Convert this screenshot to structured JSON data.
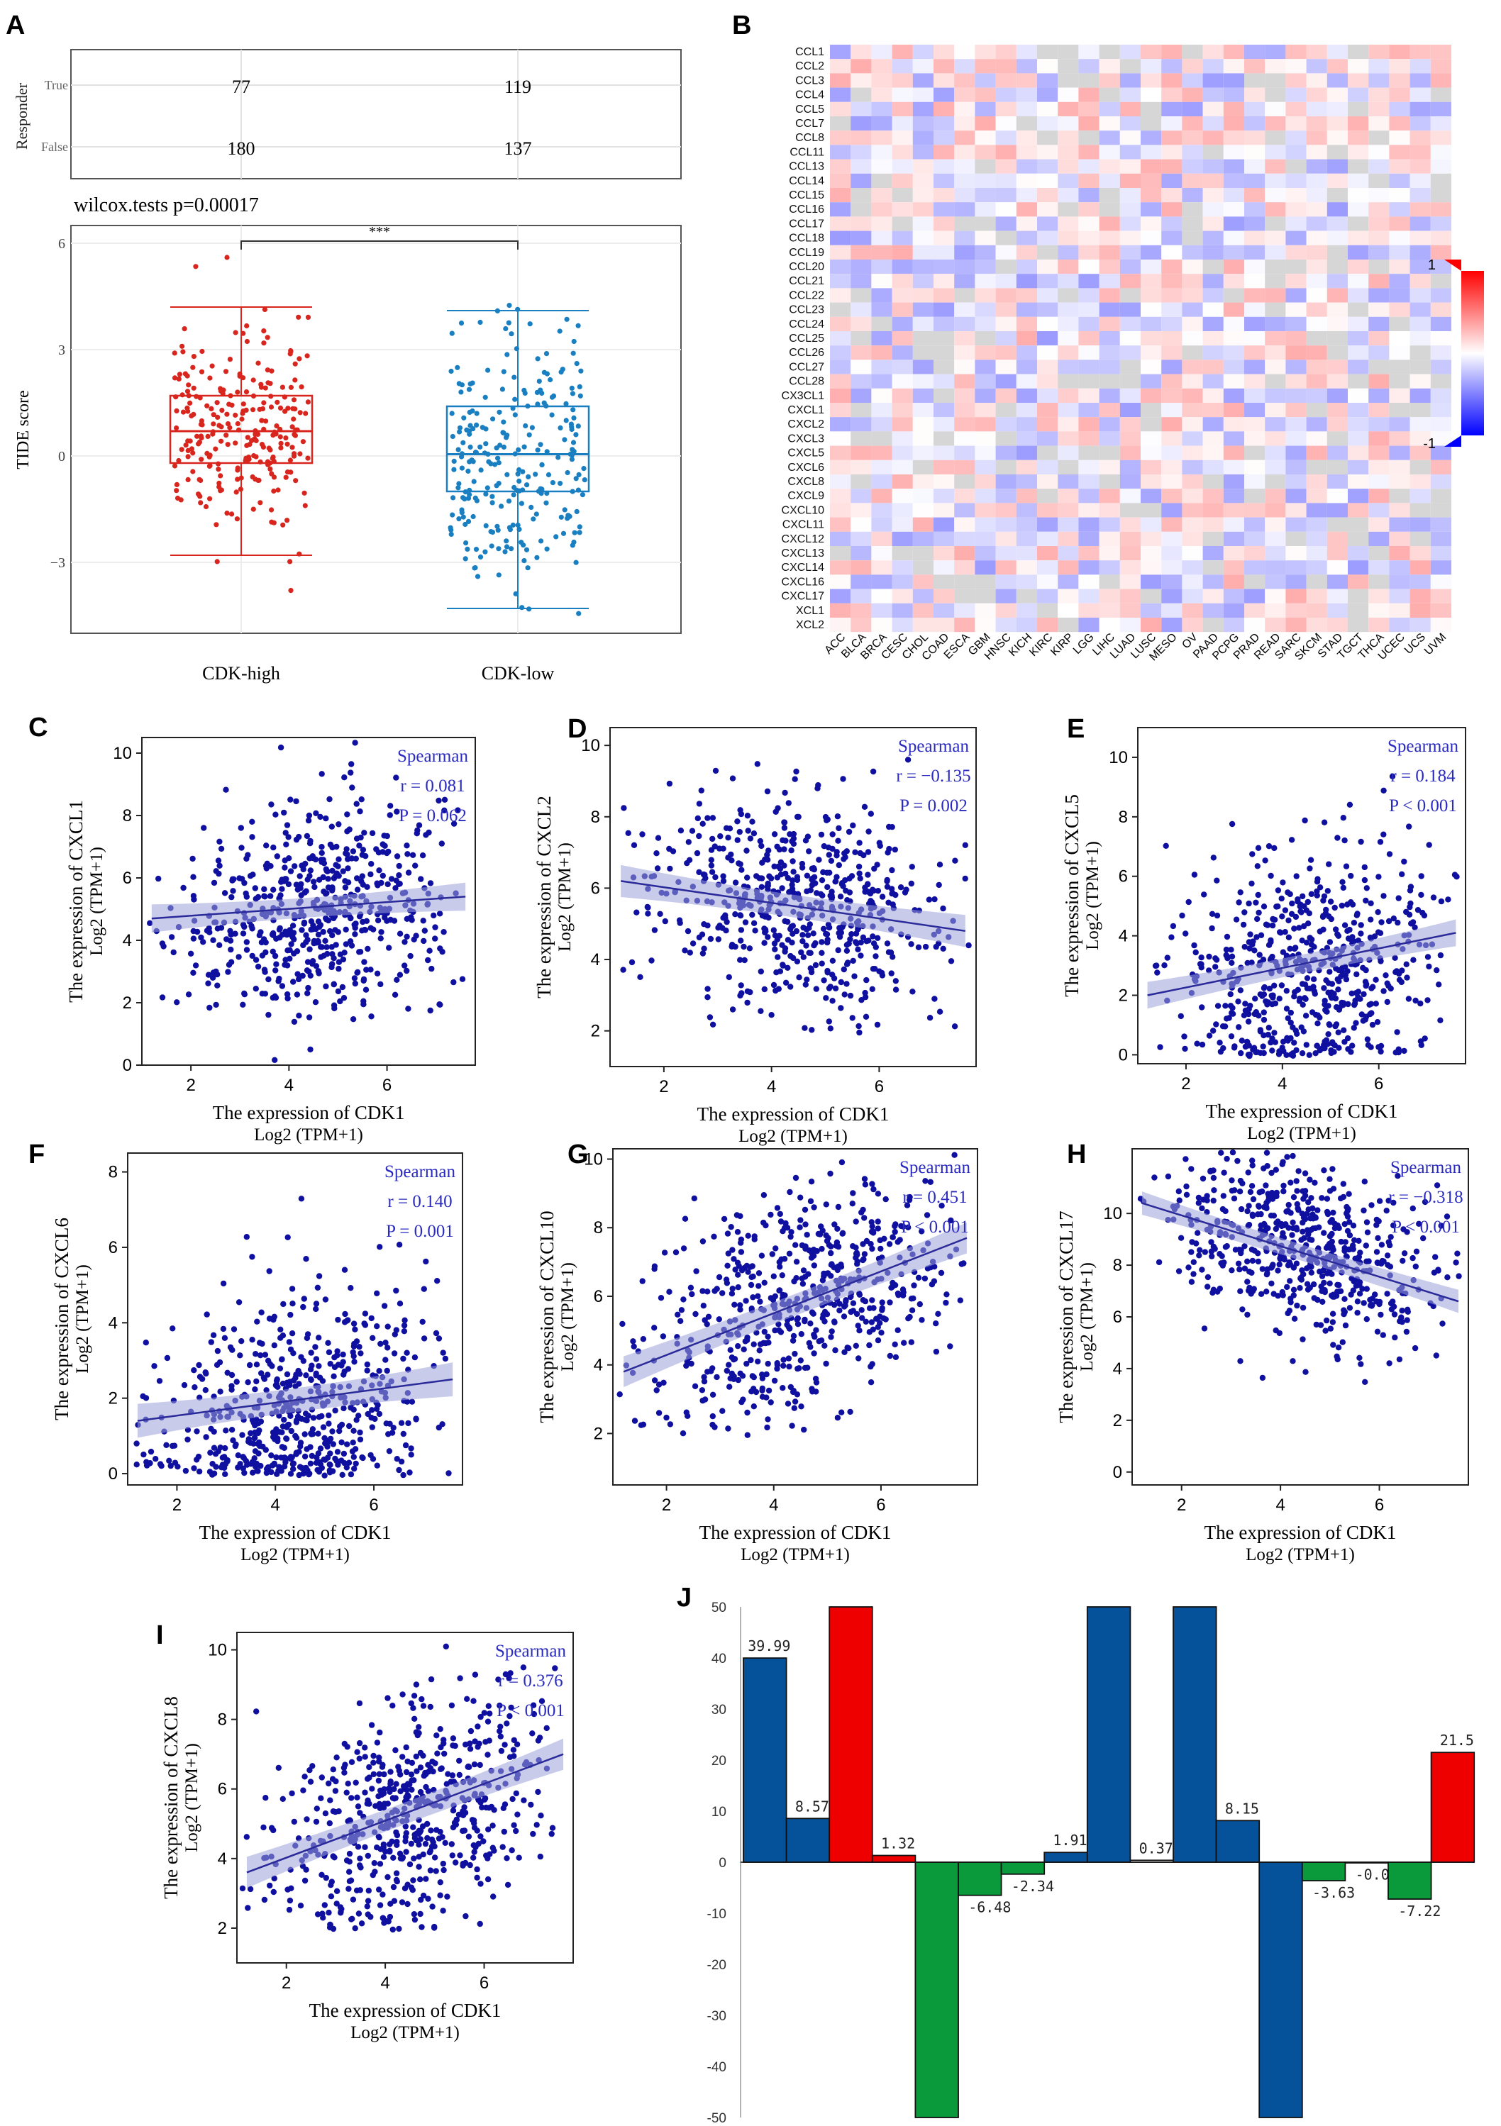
{
  "colors": {
    "high": "#d8261e",
    "low": "#1a7fc1",
    "point": "#1010a0",
    "fit": "#2a2a9a",
    "band": "#9da0d8",
    "stat": "#2b2bbf",
    "bar_blue": "#05529b",
    "bar_red": "#ee0000",
    "bar_green": "#0a9a3c",
    "bar_white": "#ffffff"
  },
  "chart_data": [
    {
      "panel": "A",
      "type": "table",
      "row_axis_label": "Responder",
      "rows": [
        "True",
        "False"
      ],
      "columns": [
        "CDK-high",
        "CDK-low"
      ],
      "values": [
        [
          77,
          119
        ],
        [
          180,
          137
        ]
      ]
    },
    {
      "panel": "A",
      "type": "scatter",
      "title": "wilcox.tests p=0.00017",
      "ylabel": "TIDE score",
      "categories": [
        "CDK-high",
        "CDK-low"
      ],
      "significance": "***",
      "ylim": [
        -5,
        6.5
      ],
      "yticks": [
        -3,
        0,
        3,
        6
      ],
      "box": [
        {
          "name": "CDK-high",
          "min": -2.8,
          "q1": -0.2,
          "median": 0.7,
          "q3": 1.7,
          "max": 4.2
        },
        {
          "name": "CDK-low",
          "min": -4.3,
          "q1": -1.0,
          "median": 0.05,
          "q3": 1.4,
          "max": 4.1
        }
      ],
      "n": [
        257,
        256
      ]
    },
    {
      "panel": "B",
      "type": "heatmap",
      "rows": [
        "CCL1",
        "CCL2",
        "CCL3",
        "CCL4",
        "CCL5",
        "CCL7",
        "CCL8",
        "CCL11",
        "CCL13",
        "CCL14",
        "CCL15",
        "CCL16",
        "CCL17",
        "CCL18",
        "CCL19",
        "CCL20",
        "CCL21",
        "CCL22",
        "CCL23",
        "CCL24",
        "CCL25",
        "CCL26",
        "CCL27",
        "CCL28",
        "CX3CL1",
        "CXCL1",
        "CXCL2",
        "CXCL3",
        "CXCL5",
        "CXCL6",
        "CXCL8",
        "CXCL9",
        "CXCL10",
        "CXCL11",
        "CXCL12",
        "CXCL13",
        "CXCL14",
        "CXCL16",
        "CXCL17",
        "XCL1",
        "XCL2"
      ],
      "columns": [
        "ACC",
        "BLCA",
        "BRCA",
        "CESC",
        "CHOL",
        "COAD",
        "ESCA",
        "GBM",
        "HNSC",
        "KICH",
        "KIRC",
        "KIRP",
        "LGG",
        "LIHC",
        "LUAD",
        "LUSC",
        "MESO",
        "OV",
        "PAAD",
        "PCPG",
        "PRAD",
        "READ",
        "SARC",
        "SKCM",
        "STAD",
        "TGCT",
        "THCA",
        "UCEC",
        "UCS",
        "UVM"
      ],
      "legend": {
        "max_label": "1",
        "min_label": "-1"
      }
    },
    {
      "panel": "C",
      "type": "scatter",
      "xlabel": "The expression  of CDK1",
      "xunit": "Log2 (TPM+1)",
      "ylabel": "The expression  of CXCL1",
      "yunit": "Log2 (TPM+1)",
      "method": "Spearman",
      "r": "r = 0.081",
      "p": "P = 0.062",
      "xlim": [
        1,
        7.8
      ],
      "ylim": [
        0,
        10.5
      ],
      "xticks": [
        2,
        4,
        6
      ],
      "yticks": [
        0,
        2,
        4,
        6,
        8,
        10
      ],
      "fit": [
        [
          1.2,
          4.7
        ],
        [
          7.6,
          5.4
        ]
      ],
      "cloud": {
        "mx": 4.5,
        "sx": 1.4,
        "my": 5.0,
        "sy": 1.7,
        "slope": 0.11,
        "n": 600
      }
    },
    {
      "panel": "D",
      "type": "scatter",
      "xlabel": "The expression  of CDK1",
      "xunit": "Log2 (TPM+1)",
      "ylabel": "The expression  of CXCL2",
      "yunit": "Log2 (TPM+1)",
      "method": "Spearman",
      "r": "r = −0.135",
      "p": "P = 0.002",
      "xlim": [
        1,
        7.8
      ],
      "ylim": [
        1,
        10.5
      ],
      "xticks": [
        2,
        4,
        6
      ],
      "yticks": [
        2,
        4,
        6,
        8,
        10
      ],
      "fit": [
        [
          1.2,
          6.2
        ],
        [
          7.6,
          4.8
        ]
      ],
      "cloud": {
        "mx": 4.5,
        "sx": 1.4,
        "my": 5.5,
        "sy": 1.5,
        "slope": -0.22,
        "n": 600
      }
    },
    {
      "panel": "E",
      "type": "scatter",
      "xlabel": "The expression  of CDK1",
      "xunit": "Log2 (TPM+1)",
      "ylabel": "The expression  of CXCL5",
      "yunit": "Log2 (TPM+1)",
      "method": "Spearman",
      "r": "r = 0.184",
      "p": "P < 0.001",
      "xlim": [
        1,
        7.8
      ],
      "ylim": [
        -0.3,
        11
      ],
      "xticks": [
        2,
        4,
        6
      ],
      "yticks": [
        0,
        2,
        4,
        6,
        8,
        10
      ],
      "fit": [
        [
          1.2,
          2.0
        ],
        [
          7.6,
          4.1
        ]
      ],
      "cloud": {
        "mx": 4.5,
        "sx": 1.4,
        "my": 2.8,
        "sy": 2.1,
        "slope": 0.33,
        "n": 600
      }
    },
    {
      "panel": "F",
      "type": "scatter",
      "xlabel": "The expression  of CDK1",
      "xunit": "Log2 (TPM+1)",
      "ylabel": "The expression  of CXCL6",
      "yunit": "Log2 (TPM+1)",
      "method": "Spearman",
      "r": "r = 0.140",
      "p": "P = 0.001",
      "xlim": [
        1,
        7.8
      ],
      "ylim": [
        -0.3,
        8.5
      ],
      "xticks": [
        2,
        4,
        6
      ],
      "yticks": [
        0,
        2,
        4,
        6,
        8
      ],
      "fit": [
        [
          1.2,
          1.4
        ],
        [
          7.6,
          2.5
        ]
      ],
      "cloud": {
        "mx": 4.5,
        "sx": 1.4,
        "my": 1.6,
        "sy": 1.6,
        "slope": 0.17,
        "n": 600
      }
    },
    {
      "panel": "G",
      "type": "scatter",
      "xlabel": "The expression  of CDK1",
      "xunit": "Log2 (TPM+1)",
      "ylabel": "The expression  of CXCL10",
      "yunit": "Log2 (TPM+1)",
      "method": "Spearman",
      "r": "r = 0.451",
      "p": "P < 0.001",
      "xlim": [
        1,
        7.8
      ],
      "ylim": [
        0.5,
        10.3
      ],
      "xticks": [
        2,
        4,
        6
      ],
      "yticks": [
        2,
        4,
        6,
        8,
        10
      ],
      "fit": [
        [
          1.2,
          3.8
        ],
        [
          7.6,
          7.7
        ]
      ],
      "cloud": {
        "mx": 4.5,
        "sx": 1.4,
        "my": 5.8,
        "sy": 1.6,
        "slope": 0.61,
        "n": 600
      }
    },
    {
      "panel": "H",
      "type": "scatter",
      "xlabel": "The expression  of CDK1",
      "xunit": "Log2 (TPM+1)",
      "ylabel": "The expression  of CXCL17",
      "yunit": "Log2 (TPM+1)",
      "method": "Spearman",
      "r": "r = −0.318",
      "p": "P < 0.001",
      "xlim": [
        1,
        7.8
      ],
      "ylim": [
        -0.5,
        12.5
      ],
      "xticks": [
        2,
        4,
        6
      ],
      "yticks": [
        0,
        2,
        4,
        6,
        8,
        10
      ],
      "fit": [
        [
          1.2,
          10.4
        ],
        [
          7.6,
          6.6
        ]
      ],
      "cloud": {
        "mx": 4.5,
        "sx": 1.4,
        "my": 8.7,
        "sy": 1.6,
        "slope": -0.59,
        "n": 600
      }
    },
    {
      "panel": "I",
      "type": "scatter",
      "xlabel": "The expression  of CDK1",
      "xunit": "Log2 (TPM+1)",
      "ylabel": "The expression  of CXCL8",
      "yunit": "Log2 (TPM+1)",
      "method": "Spearman",
      "r": "r = 0.376",
      "p": "P < 0.001",
      "xlim": [
        1,
        7.8
      ],
      "ylim": [
        1,
        10.5
      ],
      "xticks": [
        2,
        4,
        6,
        8
      ],
      "yticks": [
        2,
        4,
        6,
        8,
        10
      ],
      "fit": [
        [
          1.2,
          3.6
        ],
        [
          7.6,
          7.0
        ]
      ],
      "cloud": {
        "mx": 4.5,
        "sx": 1.4,
        "my": 5.3,
        "sy": 1.6,
        "slope": 0.53,
        "n": 600
      }
    },
    {
      "panel": "J",
      "type": "bar",
      "ylim": [
        -50,
        50
      ],
      "yticks": [
        -50,
        -40,
        -30,
        -20,
        -10,
        0,
        10,
        20,
        30,
        40,
        50
      ],
      "values": [
        39.99,
        8.57,
        50,
        1.32,
        -50,
        -6.48,
        -2.34,
        1.91,
        50,
        0.37,
        50,
        8.15,
        -50,
        -3.63,
        -0.06,
        -7.22,
        21.5
      ],
      "labels": [
        "39.99",
        "8.57",
        "",
        "1.32",
        "",
        "-6.48",
        "-2.34",
        "1.91",
        "",
        "0.37",
        "",
        "8.15",
        "",
        "-3.63",
        "-0.06",
        "-7.22",
        "21.5"
      ],
      "bar_colors": [
        "blue",
        "blue",
        "red",
        "red",
        "green",
        "green",
        "green",
        "blue",
        "blue",
        "white",
        "blue",
        "blue",
        "blue",
        "green",
        "white",
        "green",
        "red"
      ]
    }
  ],
  "panel_letters": [
    "A",
    "B",
    "C",
    "D",
    "E",
    "F",
    "G",
    "H",
    "I",
    "J"
  ]
}
